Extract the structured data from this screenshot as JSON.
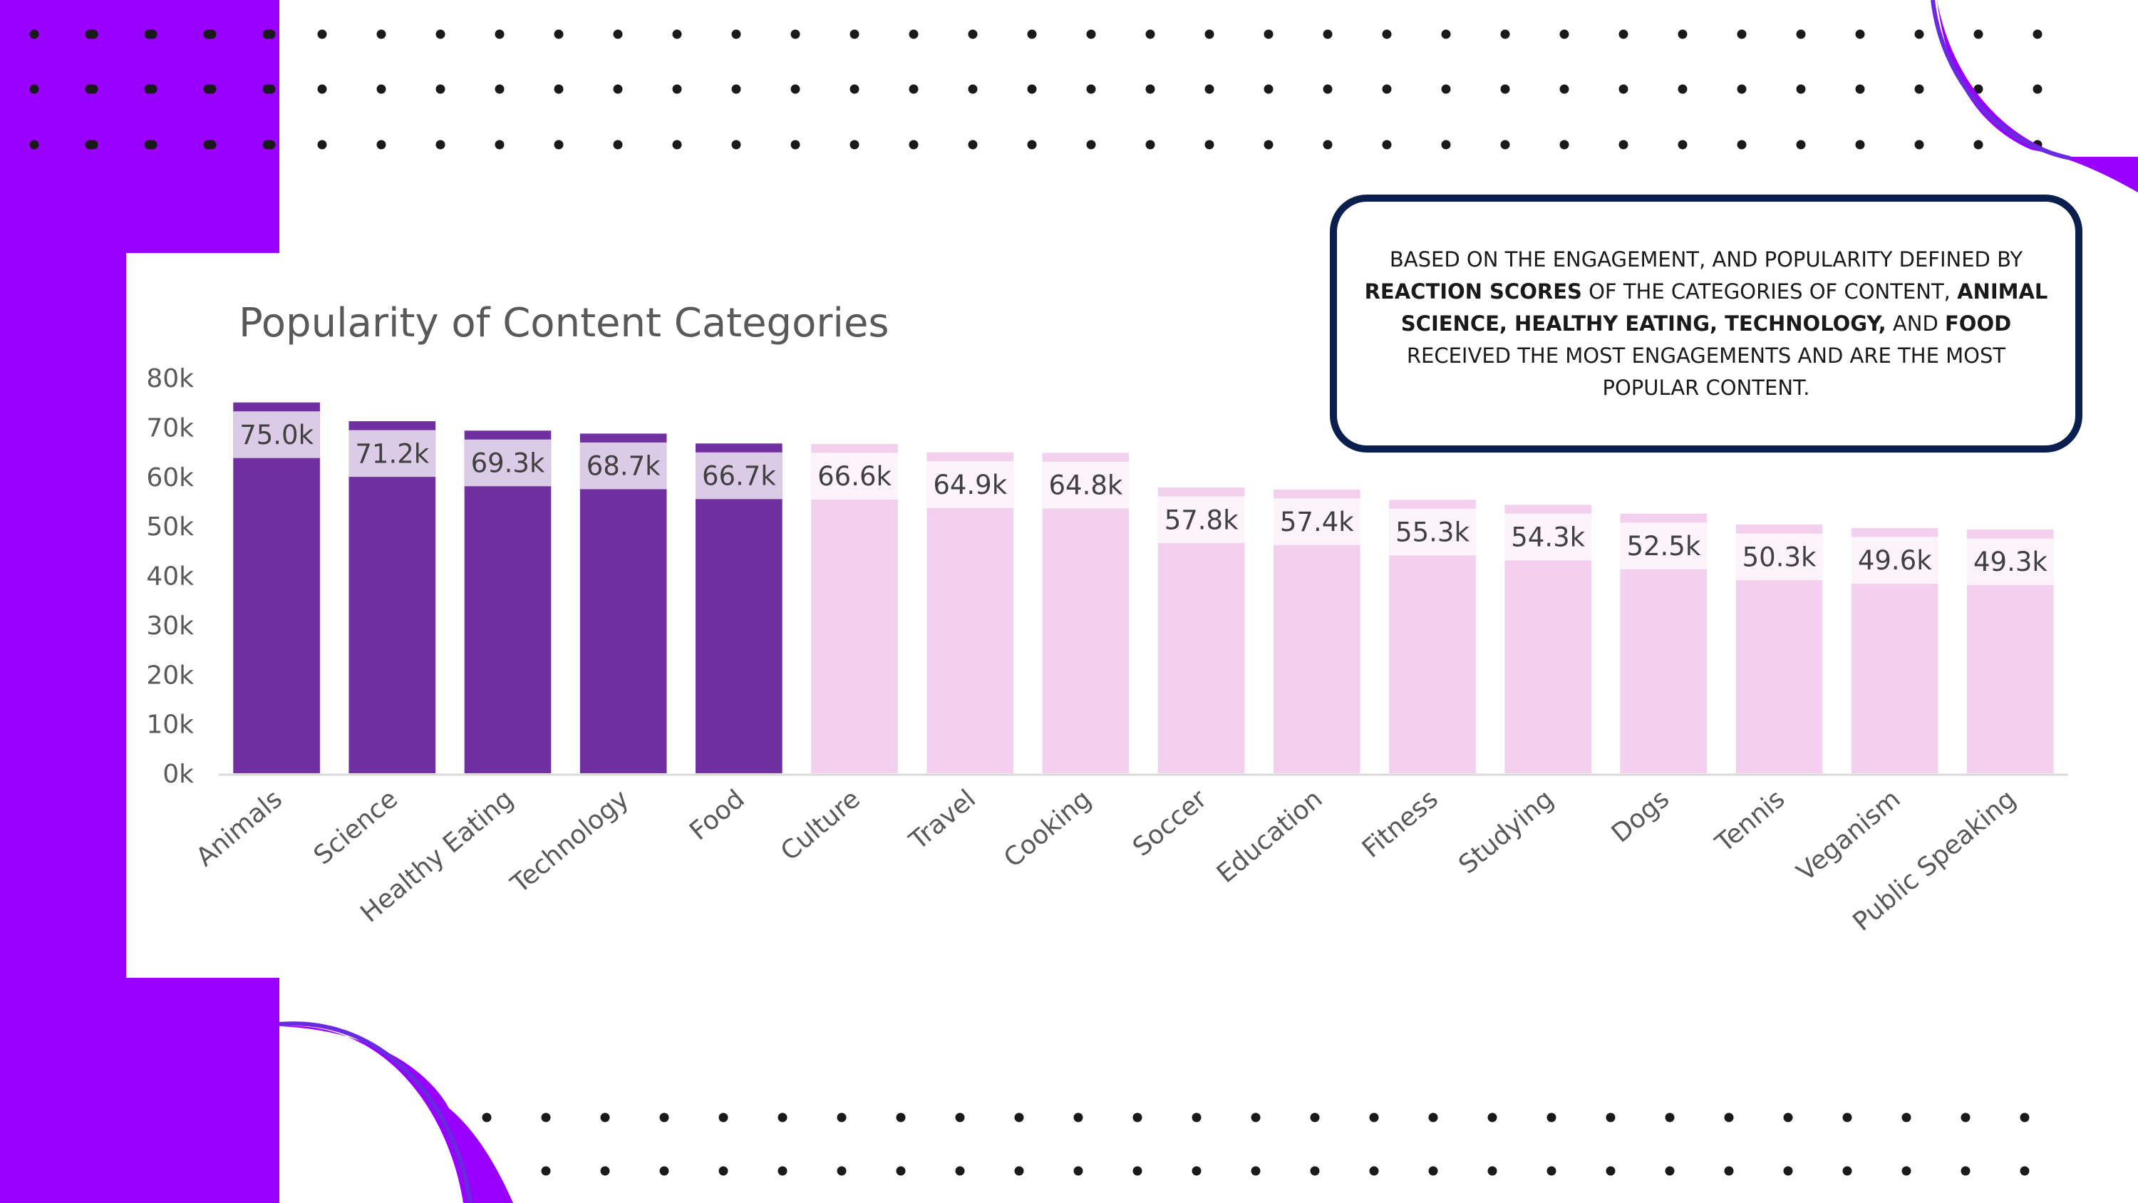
{
  "colors": {
    "sidebar": "#9900ff",
    "highlight_bar": "#7030a0",
    "normal_bar": "#f2d0ee",
    "callout_border": "#0b1f4f"
  },
  "callout": {
    "t1": "BASED ON THE ENGAGEMENT, AND POPULARITY DEFINED BY",
    "b1": "REACTION SCORES",
    "t2": "OF THE CATEGORIES OF CONTENT,",
    "b2": "ANIMAL SCIENCE, HEALTHY EATING, TECHNOLOGY,",
    "t3": "AND",
    "b3": "FOOD",
    "t4": "RECEIVED THE MOST ENGAGEMENTS AND ARE THE MOST POPULAR CONTENT."
  },
  "chart_data": {
    "type": "bar",
    "title": "Popularity of Content Categories",
    "xlabel": "",
    "ylabel": "",
    "ylim": [
      0,
      80000
    ],
    "yticks": [
      "0k",
      "10k",
      "20k",
      "30k",
      "40k",
      "50k",
      "60k",
      "70k",
      "80k"
    ],
    "categories": [
      "Animals",
      "Science",
      "Healthy Eating",
      "Technology",
      "Food",
      "Culture",
      "Travel",
      "Cooking",
      "Soccer",
      "Education",
      "Fitness",
      "Studying",
      "Dogs",
      "Tennis",
      "Veganism",
      "Public Speaking"
    ],
    "values": [
      75000,
      71200,
      69300,
      68700,
      66700,
      66600,
      64900,
      64800,
      57800,
      57400,
      55300,
      54300,
      52500,
      50300,
      49600,
      49300
    ],
    "labels": [
      "75.0k",
      "71.2k",
      "69.3k",
      "68.7k",
      "66.7k",
      "66.6k",
      "64.9k",
      "64.8k",
      "57.8k",
      "57.4k",
      "55.3k",
      "54.3k",
      "52.5k",
      "50.3k",
      "49.6k",
      "49.3k"
    ],
    "highlighted": [
      "Animals",
      "Science",
      "Healthy Eating",
      "Technology",
      "Food"
    ],
    "grid": false,
    "legend": "none"
  }
}
